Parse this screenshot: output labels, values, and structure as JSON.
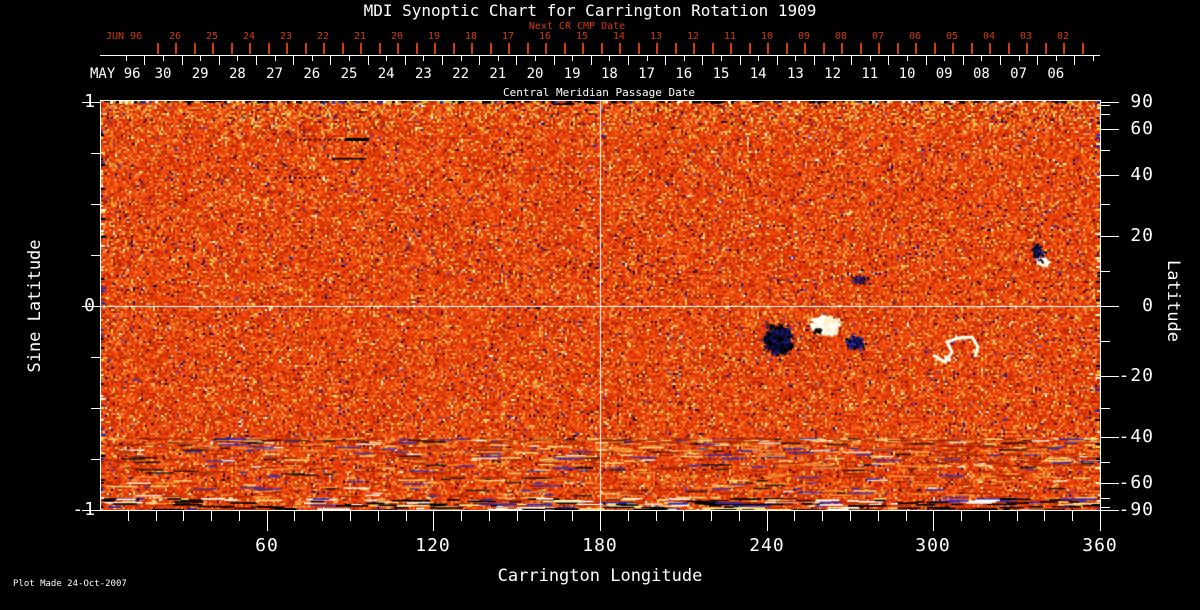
{
  "title": "MDI Synoptic Chart for Carrington Rotation 1909",
  "colors": {
    "background": "#000000",
    "text": "#ffffff",
    "date_red": "#d23b0a",
    "field_base_orange": "#ea430a",
    "negative_polarity": "#000000",
    "positive_polarity": "#fffff2"
  },
  "top_axis": {
    "next_cr_label": "Next CR CMP Date",
    "next_month": "JUN 96",
    "next_days": [
      "26",
      "25",
      "24",
      "23",
      "22",
      "21",
      "20",
      "19",
      "18",
      "17",
      "16",
      "15",
      "14",
      "13",
      "12",
      "11",
      "10",
      "09",
      "08",
      "07",
      "06",
      "05",
      "04",
      "03",
      "02"
    ],
    "cmp_month": "MAY 96",
    "cmp_days": [
      "30",
      "29",
      "28",
      "27",
      "26",
      "25",
      "24",
      "23",
      "22",
      "21",
      "20",
      "19",
      "18",
      "17",
      "16",
      "15",
      "14",
      "13",
      "12",
      "11",
      "10",
      "09",
      "08",
      "07",
      "06"
    ],
    "axis_title": "Central Meridian Passage Date"
  },
  "left_axis": {
    "title": "Sine Latitude",
    "ticks": [
      {
        "value": 1,
        "label": "1"
      },
      {
        "value": 0,
        "label": "0"
      },
      {
        "value": -1,
        "label": "-1"
      }
    ],
    "minor_step": 0.25
  },
  "right_axis": {
    "title": "Latitude",
    "labeled_ticks": [
      90,
      60,
      40,
      20,
      0,
      -20,
      -40,
      -60,
      -90
    ],
    "all_ticks": [
      90,
      80,
      70,
      60,
      50,
      40,
      30,
      20,
      10,
      0,
      -10,
      -20,
      -30,
      -40,
      -50,
      -60,
      -70,
      -80,
      -90
    ]
  },
  "bottom_axis": {
    "title": "Carrington Longitude",
    "labels": [
      "60",
      "120",
      "180",
      "240",
      "300",
      "360"
    ],
    "minor_step_deg": 10
  },
  "footer": {
    "plot_made": "Plot Made 24-Oct-2007"
  },
  "chart_data": {
    "type": "heatmap",
    "title": "MDI Synoptic Chart for Carrington Rotation 1909",
    "xlabel": "Carrington Longitude",
    "x_range_deg": [
      0,
      360
    ],
    "x_major_ticks": [
      60,
      120,
      180,
      240,
      300,
      360
    ],
    "x_minor_step_deg": 10,
    "ylabel_left": "Sine Latitude",
    "y_range_sine": [
      -1,
      1
    ],
    "y_left_ticks": [
      1,
      0,
      -1
    ],
    "ylabel_right": "Latitude",
    "y_right_labeled_ticks_deg": [
      90,
      60,
      40,
      20,
      0,
      -20,
      -40,
      -60,
      -90
    ],
    "y_scale": "sine of latitude (linear in sine)",
    "top_axis_dates": {
      "cmp_axis_title": "Central Meridian Passage Date",
      "cmp_month_start": "MAY 96",
      "cmp_days_left_to_right": [
        "30",
        "29",
        "28",
        "27",
        "26",
        "25",
        "24",
        "23",
        "22",
        "21",
        "20",
        "19",
        "18",
        "17",
        "16",
        "15",
        "14",
        "13",
        "12",
        "11",
        "10",
        "09",
        "08",
        "07",
        "06"
      ],
      "next_cr_label": "Next CR CMP Date",
      "next_cr_month_start": "JUN 96",
      "next_cr_days_left_to_right": [
        "26",
        "25",
        "24",
        "23",
        "22",
        "21",
        "20",
        "19",
        "18",
        "17",
        "16",
        "15",
        "14",
        "13",
        "12",
        "11",
        "10",
        "09",
        "08",
        "07",
        "06",
        "05",
        "04",
        "03",
        "02"
      ],
      "note": "dates decrease from left to right"
    },
    "reference_lines": {
      "longitude_deg": 180,
      "sine_latitude": 0
    },
    "field_rendering": "noisy orange/red weak-field magnetogram background with scattered yellow, dark-red, blue, black and white speckles; yellowish band near north edge; streaky mixed black/blue/yellow/white noise near south edge; short black line artifacts near top-left",
    "active_regions": [
      {
        "carrington_longitude_deg": 244,
        "latitude_deg": -8,
        "polarity": "negative",
        "appearance": "large black/dark-blue cluster"
      },
      {
        "carrington_longitude_deg": 261,
        "latitude_deg": -6,
        "polarity": "positive",
        "appearance": "bright white/cream cluster with dark specks"
      },
      {
        "carrington_longitude_deg": 274,
        "latitude_deg": -12,
        "polarity": "negative",
        "appearance": "scattered dark specks"
      },
      {
        "carrington_longitude_deg": 276,
        "latitude_deg": 9,
        "polarity": "negative",
        "appearance": "faint dark speckle group"
      },
      {
        "carrington_longitude_deg": 308,
        "latitude_deg": -13,
        "polarity": "positive",
        "appearance": "small white squiggle"
      },
      {
        "carrington_longitude_deg": 337,
        "latitude_deg": 14,
        "polarity": "mixed",
        "appearance": "small black patch adjoining bright white patch"
      }
    ],
    "annotations": [
      "Plot Made 24-Oct-2007"
    ],
    "legend": "none",
    "grid": "off (only 180-deg meridian and equator reference lines)"
  }
}
